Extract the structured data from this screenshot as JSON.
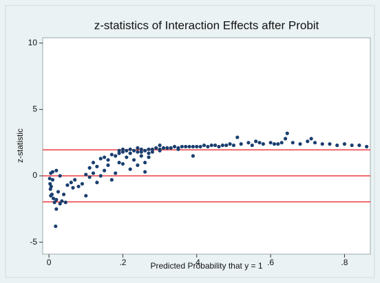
{
  "chart_data": {
    "type": "scatter",
    "title": "z-statistics of Interaction Effects after Probit",
    "x_label": "Predicted Probability that y = 1",
    "y_label": "z-statistic",
    "xlim": [
      -0.017,
      0.87
    ],
    "ylim": [
      -5.9,
      10.4
    ],
    "xticks": [
      0,
      {
        "value": 0.2,
        "label": ".2"
      },
      {
        "value": 0.4,
        "label": ".4"
      },
      {
        "value": 0.6,
        "label": ".6"
      },
      {
        "value": 0.8,
        "label": ".8"
      }
    ],
    "yticks": [
      10,
      5,
      0,
      -5
    ],
    "reference_lines": [
      1.96,
      0,
      -1.96
    ],
    "reference_color": "#e8161b",
    "grid": false,
    "series": [
      {
        "color": "#1a3f6f",
        "x": [
          0.002,
          0.003,
          0.004,
          0.005,
          0.006,
          0.008,
          0.01,
          0.012,
          0.015,
          0.018,
          0.02,
          0.02,
          0.025,
          0.03,
          0.035,
          0.04,
          0.045,
          0.05,
          0.06,
          0.065,
          0.07,
          0.08,
          0.09,
          0.1,
          0.1,
          0.11,
          0.11,
          0.12,
          0.12,
          0.13,
          0.13,
          0.14,
          0.14,
          0.15,
          0.15,
          0.16,
          0.16,
          0.17,
          0.17,
          0.18,
          0.18,
          0.19,
          0.19,
          0.2,
          0.2,
          0.21,
          0.21,
          0.22,
          0.22,
          0.23,
          0.23,
          0.24,
          0.24,
          0.25,
          0.25,
          0.26,
          0.26,
          0.27,
          0.27,
          0.28,
          0.29,
          0.3,
          0.31,
          0.32,
          0.33,
          0.34,
          0.35,
          0.36,
          0.37,
          0.38,
          0.39,
          0.4,
          0.41,
          0.42,
          0.43,
          0.44,
          0.45,
          0.46,
          0.47,
          0.48,
          0.49,
          0.5,
          0.51,
          0.52,
          0.54,
          0.55,
          0.56,
          0.57,
          0.58,
          0.6,
          0.61,
          0.62,
          0.63,
          0.64,
          0.645,
          0.66,
          0.68,
          0.7,
          0.71,
          0.72,
          0.74,
          0.76,
          0.78,
          0.8,
          0.82,
          0.84,
          0.86,
          0.02,
          0.01,
          0.005,
          0.03,
          0.24,
          0.22,
          0.3,
          0.35,
          0.3,
          0.39,
          0.27,
          0.28,
          0.2,
          0.19,
          0.25,
          0.26
        ],
        "values": [
          -0.2,
          -0.6,
          -1.0,
          0.2,
          -0.8,
          -1.4,
          -0.3,
          -1.7,
          -2.0,
          -3.8,
          -2.5,
          -1.8,
          -1.2,
          -2.1,
          -1.9,
          -1.4,
          -2.0,
          -0.7,
          -0.5,
          -0.9,
          -0.3,
          -0.8,
          -0.6,
          -1.5,
          0.1,
          0.6,
          -0.1,
          1.0,
          0.2,
          0.7,
          -0.5,
          1.3,
          0.0,
          1.4,
          0.4,
          1.2,
          0.8,
          1.6,
          -0.3,
          1.5,
          0.2,
          1.7,
          1.0,
          1.8,
          0.9,
          1.9,
          1.4,
          1.7,
          0.5,
          1.9,
          1.2,
          1.8,
          0.8,
          2.0,
          1.5,
          1.9,
          0.3,
          2.0,
          1.7,
          2.0,
          2.1,
          2.0,
          2.1,
          2.1,
          2.1,
          2.2,
          2.1,
          2.2,
          2.2,
          2.2,
          2.2,
          2.2,
          2.2,
          2.3,
          2.2,
          2.3,
          2.3,
          2.2,
          2.3,
          2.3,
          2.4,
          2.3,
          2.9,
          2.4,
          2.5,
          2.3,
          2.6,
          2.5,
          2.4,
          2.5,
          2.4,
          2.4,
          2.5,
          2.8,
          3.2,
          2.5,
          2.4,
          2.6,
          2.8,
          2.5,
          2.4,
          2.4,
          2.3,
          2.4,
          2.3,
          2.3,
          2.2,
          0.4,
          0.3,
          -1.5,
          0.0,
          2.1,
          2.0,
          1.9,
          2.0,
          2.3,
          1.5,
          1.4,
          1.8,
          2.0,
          1.9,
          1.8,
          1.0
        ]
      }
    ]
  }
}
